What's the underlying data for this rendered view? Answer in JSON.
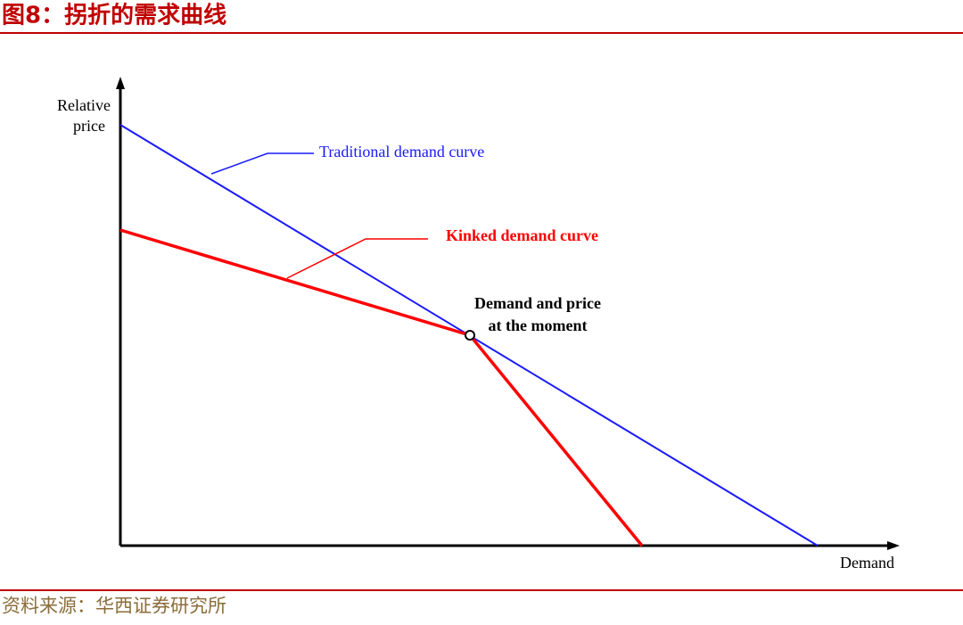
{
  "header": {
    "title": "图8：拐折的需求曲线"
  },
  "figure": {
    "y_axis_label": [
      "Relative",
      "price"
    ],
    "x_axis_label": "Demand",
    "curves": [
      {
        "label": "Traditional demand curve"
      },
      {
        "label": "Kinked demand curve"
      }
    ],
    "annotation": [
      "Demand and price",
      "at the moment"
    ]
  },
  "footer": {
    "source": "资料来源：华西证券研究所"
  }
}
